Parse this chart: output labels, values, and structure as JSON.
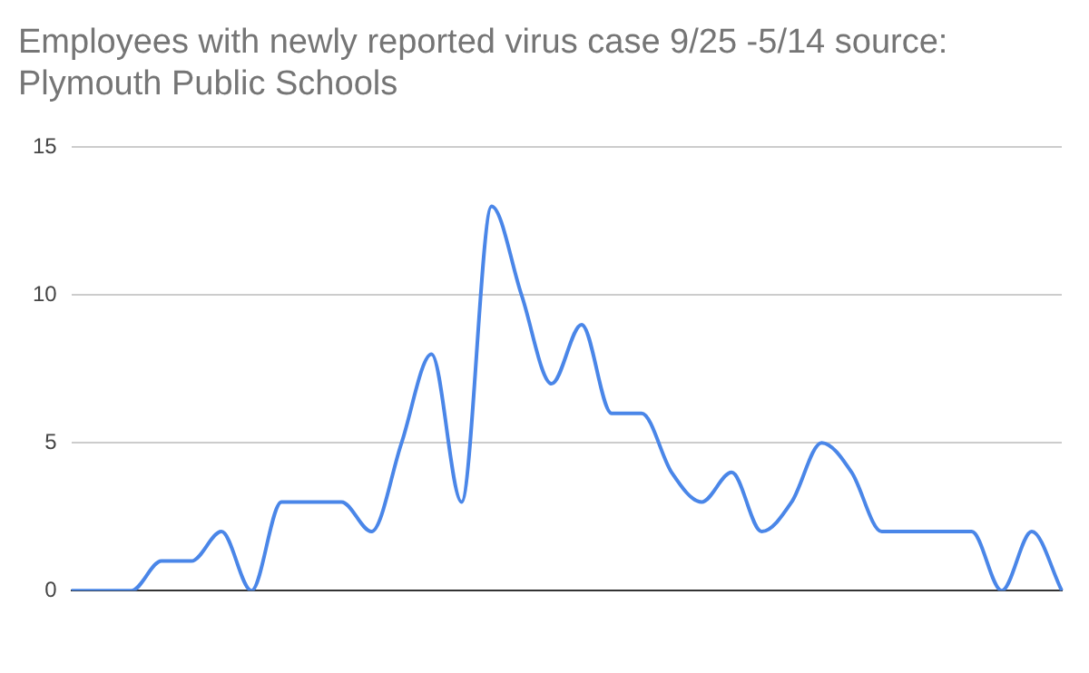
{
  "chart_data": {
    "type": "line",
    "title": "Employees with newly reported virus case 9/25 -5/14 source: Plymouth Public Schools",
    "categories": [
      null,
      null,
      null,
      null,
      null,
      null,
      null,
      null,
      null,
      null,
      null,
      null,
      null,
      null,
      null,
      null,
      null,
      null,
      null,
      null,
      null,
      null,
      null,
      null,
      null,
      null,
      null,
      null,
      null,
      null,
      null,
      null,
      null,
      null
    ],
    "series": [
      {
        "color": "#4a86e8",
        "values": [
          0,
          0,
          0,
          1,
          1,
          2,
          0,
          3,
          3,
          3,
          2,
          5,
          8,
          3,
          13,
          10,
          7,
          9,
          6,
          6,
          4,
          3,
          4,
          2,
          3,
          5,
          4,
          2,
          2,
          2,
          2,
          0,
          2,
          0
        ]
      }
    ],
    "ylim": [
      0,
      15
    ],
    "yticks": [
      0,
      5,
      10,
      15
    ],
    "grid": "y",
    "legend": false,
    "marker": "none",
    "line_style": "solid"
  }
}
